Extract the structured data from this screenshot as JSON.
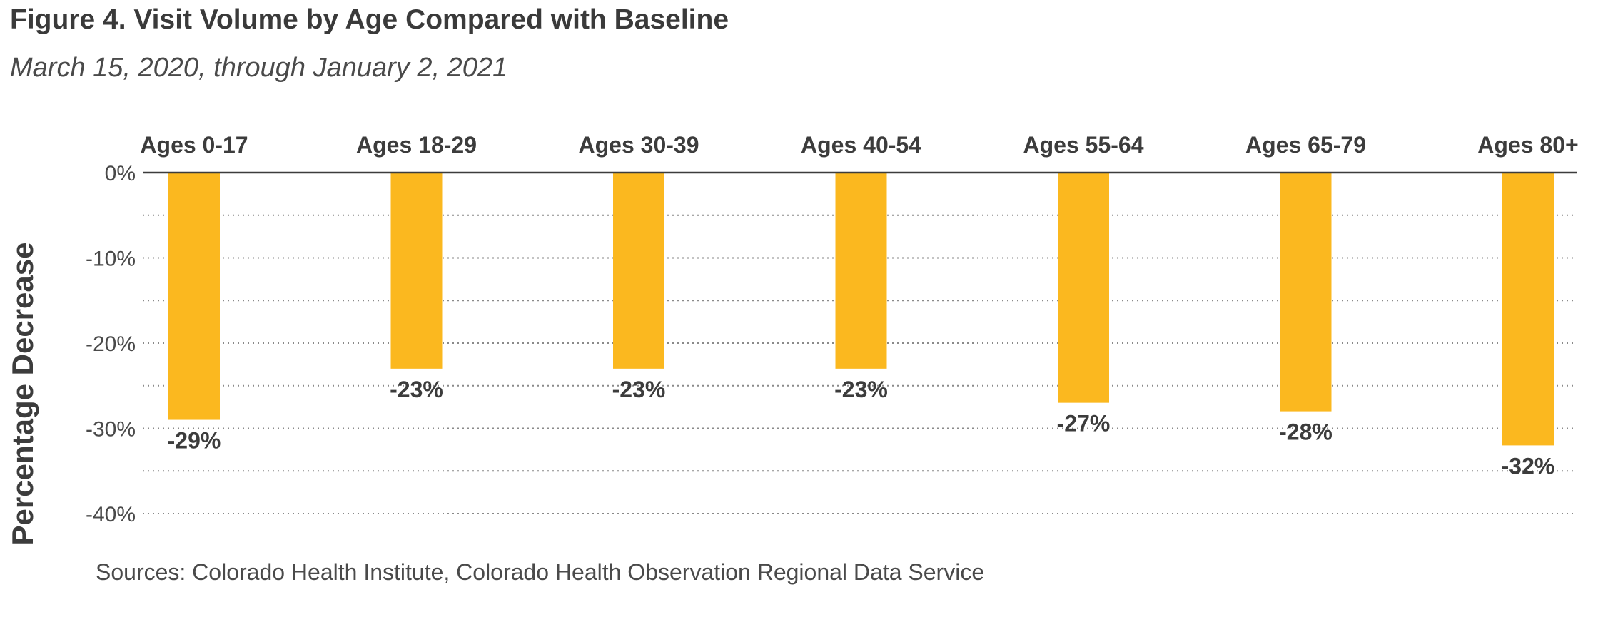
{
  "title": "Figure 4. Visit Volume by Age Compared with Baseline",
  "subtitle": "March 15, 2020, through January 2, 2021",
  "source": "Sources: Colorado Health Institute, Colorado Health Observation Regional Data Service",
  "colors": {
    "bar": "#FBB81F",
    "text": "#3c3c3c",
    "axis": "#3c3c3c",
    "grid": "#8a8a8a"
  },
  "chart_data": {
    "type": "bar",
    "categories": [
      "Ages 0-17",
      "Ages 18-29",
      "Ages 30-39",
      "Ages 40-54",
      "Ages 55-64",
      "Ages 65-79",
      "Ages 80+"
    ],
    "values": [
      -29,
      -23,
      -23,
      -23,
      -27,
      -28,
      -32
    ],
    "data_labels": [
      "-29%",
      "-23%",
      "-23%",
      "-23%",
      "-27%",
      "-28%",
      "-32%"
    ],
    "ylabel": "Percentage Decrease",
    "ylim": [
      -40,
      0
    ],
    "yticks": [
      0,
      -10,
      -20,
      -30,
      -40
    ],
    "ytick_labels": [
      "0%",
      "-10%",
      "-20%",
      "-30%",
      "-40%"
    ],
    "grid": true,
    "grid_style": "dotted",
    "category_labels_position": "top"
  }
}
